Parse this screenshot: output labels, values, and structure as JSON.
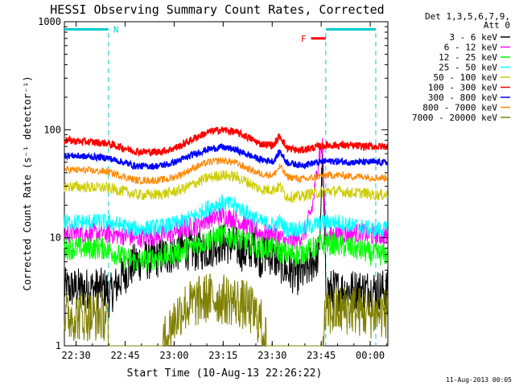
{
  "chart_data": {
    "type": "line",
    "title": "HESSI Observing Summary Count Rates, Corrected",
    "xlabel": "Start Time (10-Aug-13 22:26:22)",
    "ylabel": "Corrected Count Rate (s⁻¹ detector⁻¹)",
    "footer": "11-Aug-2013 00:05",
    "x_unit": "minutes after 22:26:22",
    "xlim": [
      0,
      99
    ],
    "ylim": [
      1,
      1000
    ],
    "y_scale": "log",
    "xticks": [
      {
        "x": 3.6,
        "label": "22:30"
      },
      {
        "x": 18.6,
        "label": "22:45"
      },
      {
        "x": 33.6,
        "label": "23:00"
      },
      {
        "x": 48.6,
        "label": "23:15"
      },
      {
        "x": 63.6,
        "label": "23:30"
      },
      {
        "x": 78.6,
        "label": "23:45"
      },
      {
        "x": 93.6,
        "label": "00:00"
      }
    ],
    "yticks": [
      {
        "y": 1,
        "label": "1"
      },
      {
        "y": 10,
        "label": "10"
      },
      {
        "y": 100,
        "label": "100"
      },
      {
        "y": 1000,
        "label": "1000"
      }
    ],
    "legend_header": [
      "Det 1,3,5,6,7,9,",
      "Att 0"
    ],
    "legend_position": "right",
    "series": [
      {
        "name": "3 - 6 keV",
        "color": "#000000",
        "x": [
          0,
          13,
          13.5,
          18,
          22,
          28,
          32,
          36,
          40,
          44,
          48,
          52,
          56,
          58,
          60,
          62,
          64,
          66,
          68,
          72,
          74,
          76,
          78,
          79,
          80,
          84,
          88,
          92,
          94,
          99
        ],
        "values": [
          3.4,
          3.4,
          2.8,
          4.5,
          6,
          6.5,
          7,
          8,
          7.5,
          8,
          9,
          8.5,
          7,
          9,
          6.5,
          7.5,
          6.5,
          6,
          5,
          4.5,
          5,
          6,
          7,
          60,
          3.3,
          3.3,
          3.3,
          3.3,
          3.3,
          3.3
        ]
      },
      {
        "name": "6 - 12 keV",
        "color": "#ff00ff",
        "x": [
          0,
          13,
          18,
          22,
          28,
          32,
          36,
          40,
          44,
          48,
          52,
          56,
          60,
          64,
          66,
          68,
          72,
          74,
          76,
          77,
          78,
          79,
          80,
          84,
          88,
          92,
          94,
          99
        ],
        "values": [
          11,
          11,
          10.5,
          10,
          10.5,
          11,
          12,
          13,
          15,
          16,
          15,
          13,
          11,
          11,
          10,
          9,
          10,
          12,
          20,
          35,
          60,
          70,
          10,
          11,
          11,
          11,
          10.5,
          10.5
        ]
      },
      {
        "name": "12 - 25 keV",
        "color": "#00ff00",
        "x": [
          0,
          13,
          18,
          22,
          28,
          32,
          36,
          40,
          44,
          48,
          52,
          56,
          60,
          64,
          66,
          68,
          72,
          74,
          76,
          78,
          80,
          84,
          88,
          92,
          94,
          99
        ],
        "values": [
          8,
          8,
          6.5,
          6,
          6.5,
          7,
          7.5,
          8.5,
          9.5,
          10.5,
          10,
          9,
          8,
          8,
          7.5,
          7,
          7,
          7.5,
          8,
          8.5,
          9,
          8.5,
          8,
          7.5,
          7,
          7
        ]
      },
      {
        "name": "25 - 50 keV",
        "color": "#00ffff",
        "x": [
          0,
          13,
          18,
          22,
          28,
          32,
          36,
          40,
          44,
          48,
          52,
          56,
          60,
          64,
          66,
          68,
          72,
          74,
          76,
          78,
          80,
          84,
          88,
          92,
          94,
          99
        ],
        "values": [
          14,
          14,
          13,
          12,
          12.5,
          13,
          14,
          16,
          19,
          21,
          20,
          17,
          14,
          13,
          14,
          12,
          12,
          12.5,
          13,
          13.5,
          14,
          14,
          13,
          12.5,
          12,
          12
        ]
      },
      {
        "name": "50 - 100 keV",
        "color": "#cccc00",
        "x": [
          0,
          13,
          18,
          22,
          28,
          32,
          36,
          40,
          44,
          48,
          52,
          56,
          60,
          64,
          66,
          68,
          72,
          74,
          76,
          78,
          80,
          84,
          88,
          92,
          94,
          99
        ],
        "values": [
          30,
          29,
          27,
          25,
          25,
          26,
          28,
          32,
          36,
          38,
          37,
          33,
          28,
          28,
          30,
          24,
          24,
          25,
          26,
          26,
          27,
          27,
          26,
          26,
          25,
          25
        ]
      },
      {
        "name": "100 - 300 keV",
        "color": "#ff0000",
        "x": [
          0,
          13,
          18,
          22,
          28,
          32,
          36,
          40,
          44,
          48,
          52,
          56,
          60,
          64,
          66,
          68,
          72,
          74,
          76,
          78,
          80,
          84,
          88,
          92,
          94,
          99
        ],
        "values": [
          80,
          75,
          68,
          63,
          62,
          65,
          72,
          84,
          95,
          100,
          96,
          86,
          74,
          72,
          88,
          68,
          64,
          66,
          68,
          70,
          72,
          72,
          71,
          70,
          70,
          70
        ]
      },
      {
        "name": "300 - 800 keV",
        "color": "#0000ff",
        "x": [
          0,
          13,
          18,
          22,
          28,
          32,
          36,
          40,
          44,
          48,
          52,
          56,
          60,
          64,
          66,
          68,
          72,
          74,
          76,
          78,
          80,
          84,
          88,
          92,
          94,
          99
        ],
        "values": [
          58,
          55,
          50,
          46,
          46,
          48,
          53,
          60,
          66,
          69,
          66,
          59,
          53,
          51,
          63,
          50,
          47,
          48,
          49,
          50,
          51,
          51,
          50,
          50,
          50,
          50
        ]
      },
      {
        "name": "800 - 7000 keV",
        "color": "#ff8800",
        "x": [
          0,
          13,
          18,
          22,
          28,
          32,
          36,
          40,
          44,
          48,
          52,
          56,
          60,
          64,
          66,
          68,
          72,
          74,
          76,
          78,
          80,
          84,
          88,
          92,
          94,
          99
        ],
        "values": [
          43,
          41,
          37,
          34,
          34,
          35,
          39,
          45,
          50,
          52,
          50,
          44,
          39,
          38,
          46,
          37,
          35,
          35,
          36,
          37,
          38,
          38,
          37,
          37,
          36,
          36
        ]
      },
      {
        "name": "7000 - 20000 keV",
        "color": "#808000",
        "x": [
          0,
          13,
          13.5,
          30,
          33,
          36,
          40,
          44,
          48,
          52,
          56,
          60,
          62,
          70,
          78,
          79,
          80,
          84,
          88,
          92,
          94,
          99
        ],
        "values": [
          1.9,
          1.9,
          1,
          1,
          1.6,
          2.2,
          2.5,
          2.8,
          2.7,
          2.6,
          2.3,
          1.7,
          1,
          1,
          1,
          1,
          2,
          2.1,
          2.2,
          2,
          2,
          2
        ]
      }
    ],
    "annotations": [
      {
        "label": "N",
        "color": "#00cccc",
        "x_start": 0,
        "x_end": 13.5,
        "y": 850
      },
      {
        "label": "",
        "color": "#00cccc",
        "x_start": 80,
        "x_end": 95.3,
        "y": 850
      },
      {
        "label": "F",
        "color": "#ff0000",
        "x_start": 75.5,
        "x_end": 80,
        "y": 700
      }
    ],
    "vertical_markers": [
      {
        "x": 13.5,
        "color": "#00cccc"
      },
      {
        "x": 80,
        "color": "#00cccc"
      },
      {
        "x": 95.3,
        "color": "#00cccc"
      }
    ],
    "grid": false
  }
}
